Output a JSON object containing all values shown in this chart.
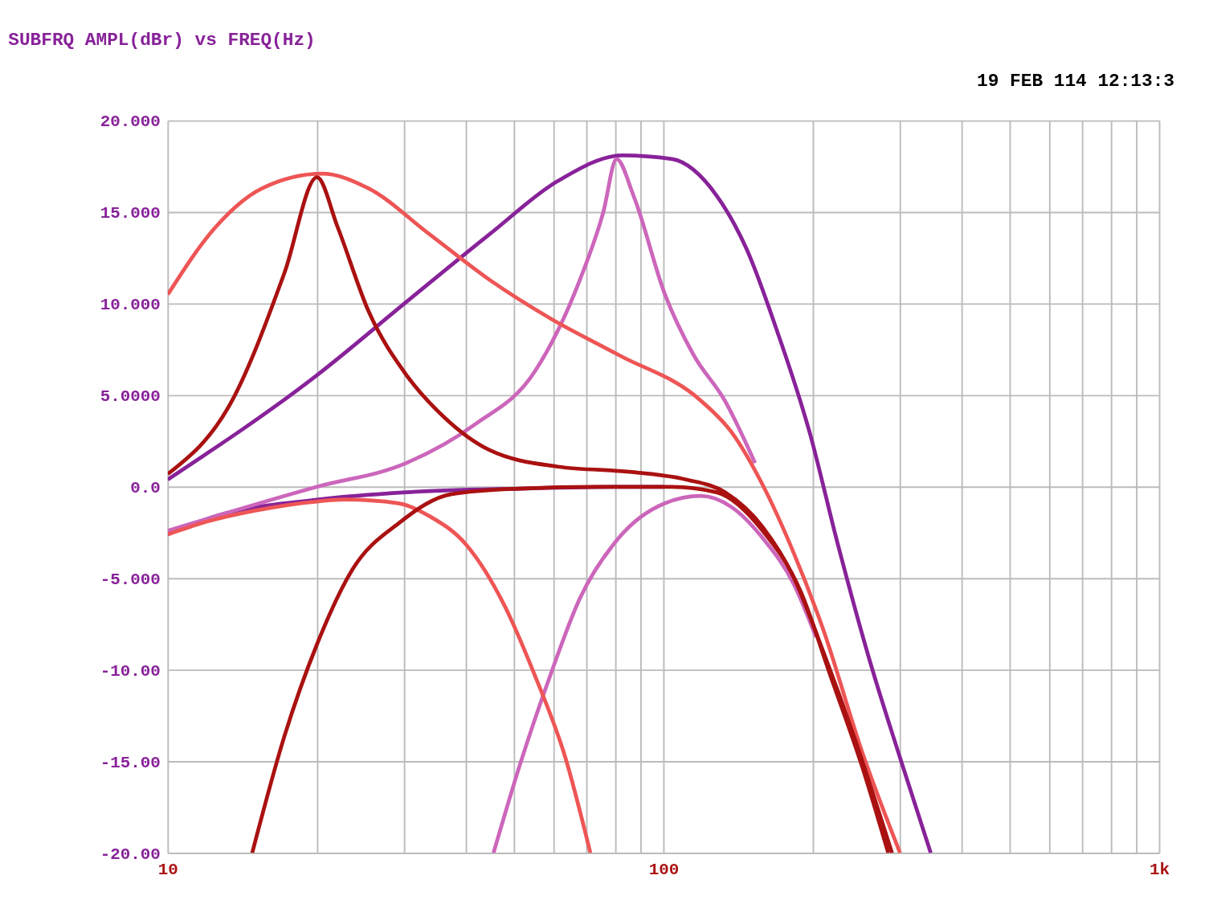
{
  "chart_data": {
    "type": "line",
    "title": "SUBFRQ AMPL(dBr) vs FREQ(Hz)",
    "annotations": [
      "19 FEB 114 12:13:3"
    ],
    "log": "x",
    "grid": true,
    "marker": "none",
    "line_style": "solid",
    "xlim": [
      10,
      1000
    ],
    "ylim": [
      -20,
      20
    ],
    "xticks": [
      {
        "value": 10,
        "label": "10"
      },
      {
        "value": 20,
        "label": null
      },
      {
        "value": 30,
        "label": null
      },
      {
        "value": 40,
        "label": null
      },
      {
        "value": 50,
        "label": null
      },
      {
        "value": 60,
        "label": null
      },
      {
        "value": 70,
        "label": null
      },
      {
        "value": 80,
        "label": null
      },
      {
        "value": 90,
        "label": null
      },
      {
        "value": 100,
        "label": "100"
      },
      {
        "value": 200,
        "label": null
      },
      {
        "value": 300,
        "label": null
      },
      {
        "value": 400,
        "label": null
      },
      {
        "value": 500,
        "label": null
      },
      {
        "value": 600,
        "label": null
      },
      {
        "value": 700,
        "label": null
      },
      {
        "value": 800,
        "label": null
      },
      {
        "value": 900,
        "label": null
      },
      {
        "value": 1000,
        "label": "1k"
      }
    ],
    "yticks": [
      {
        "value": 20,
        "label": "20.000"
      },
      {
        "value": 15,
        "label": "15.000"
      },
      {
        "value": 10,
        "label": "10.000"
      },
      {
        "value": 5,
        "label": "5.0000"
      },
      {
        "value": 0,
        "label": "0.0"
      },
      {
        "value": -5,
        "label": "-5.000"
      },
      {
        "value": -10,
        "label": "-10.00"
      },
      {
        "value": -15,
        "label": "-15.00"
      },
      {
        "value": -20,
        "label": "-20.00"
      }
    ],
    "series": [
      {
        "color": "#882299",
        "x": [
          10,
          20,
          30.3,
          44.6,
          61.2,
          82.7,
          104,
          128,
          147,
          170,
          197,
          225,
          260,
          300,
          346
        ],
        "values": [
          0.4,
          6.1,
          10.1,
          13.8,
          16.7,
          18.1,
          17.9,
          15.9,
          13.0,
          8.4,
          3.0,
          -3.2,
          -9.4,
          -14.8,
          -20
        ]
      },
      {
        "color": "#882299",
        "x": [
          10,
          12.5,
          20,
          30.3,
          51.3,
          87,
          100
        ],
        "values": [
          -2.6,
          -1.6,
          -0.7,
          -0.3,
          -0.1,
          0,
          0
        ]
      },
      {
        "color": "#cc66bb",
        "x": [
          10,
          20,
          30.3,
          41.6,
          55,
          67.8,
          75.6,
          80.4,
          87,
          100.7,
          115,
          133,
          153
        ],
        "values": [
          -2.4,
          0,
          1.3,
          3.4,
          6.3,
          11.3,
          15.0,
          17.9,
          15.9,
          10.5,
          7.2,
          4.7,
          1.3
        ]
      },
      {
        "color": "#cc66bb",
        "x": [
          45.4,
          51.3,
          59.1,
          67.8,
          81.2,
          100.7,
          119,
          137,
          158.5,
          183,
          203
        ],
        "values": [
          -20,
          -15.2,
          -10.3,
          -6.1,
          -2.8,
          -0.9,
          -0.5,
          -1.1,
          -2.8,
          -5.3,
          -8.2
        ]
      },
      {
        "color": "#ee5555",
        "x": [
          10,
          12.5,
          15.5,
          20.5,
          25.4,
          33.7,
          44.6,
          59.1,
          81.2,
          119,
          137,
          158.5,
          183,
          210,
          251,
          300
        ],
        "values": [
          10.5,
          14.2,
          16.3,
          17.1,
          16.3,
          13.8,
          11.3,
          9.2,
          7.2,
          4.7,
          3.0,
          0.1,
          -3.6,
          -7.8,
          -14.4,
          -20
        ]
      },
      {
        "color": "#ee5555",
        "x": [
          10,
          12,
          15,
          20,
          22.8,
          29.2,
          33.7,
          40.1,
          47.8,
          55,
          63.4,
          71.2
        ],
        "values": [
          -2.6,
          -1.9,
          -1.3,
          -0.8,
          -0.7,
          -0.9,
          -1.6,
          -3.2,
          -6.5,
          -10.3,
          -14.8,
          -20
        ]
      },
      {
        "color": "#aa1111",
        "x": [
          10,
          13.45,
          17.2,
          20,
          22,
          25.4,
          30.3,
          36.1,
          44.6,
          61.2,
          87.1,
          111,
          133,
          158.5,
          182.7,
          210,
          242,
          289
        ],
        "values": [
          0.7,
          4.66,
          11.7,
          16.9,
          14.2,
          9.6,
          6.1,
          3.8,
          2.0,
          1.1,
          0.8,
          0.4,
          -0.3,
          -2.2,
          -4.9,
          -9.0,
          -13.6,
          -20
        ]
      },
      {
        "color": "#aa1111",
        "x": [
          14.8,
          17.2,
          20,
          23.6,
          29.2,
          37.4,
          51.3,
          73.2,
          104,
          128,
          158.5,
          189,
          217,
          251,
          284
        ],
        "values": [
          -20,
          -13.6,
          -8.6,
          -4.5,
          -2.0,
          -0.4,
          -0.1,
          0,
          0,
          -0.3,
          -2.4,
          -5.7,
          -10.3,
          -15.2,
          -20
        ]
      }
    ]
  }
}
